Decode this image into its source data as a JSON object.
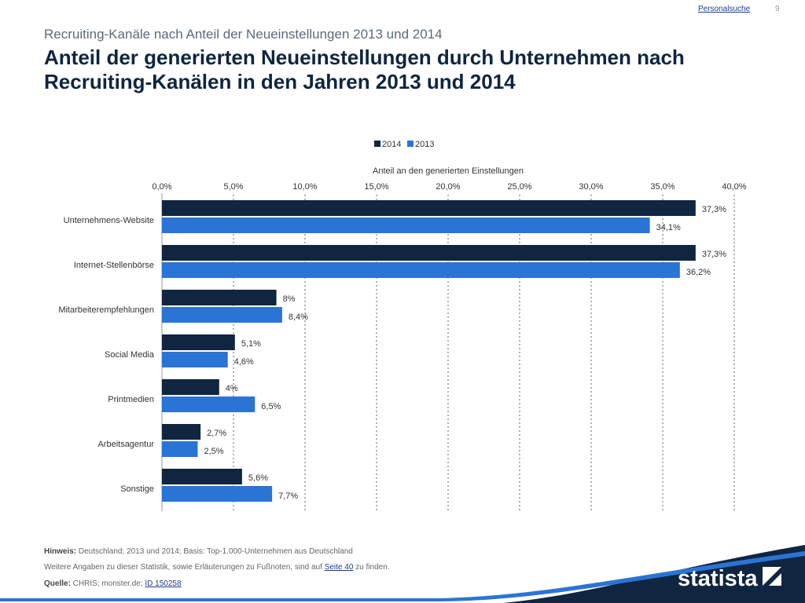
{
  "nav": {
    "link": "Personalsuche",
    "page": "9"
  },
  "header": {
    "subtitle": "Recruiting-Kanäle nach Anteil der Neueinstellungen 2013 und 2014",
    "title": "Anteil der generierten Neueinstellungen durch Unternehmen nach Recruiting-Kanälen in den Jahren 2013 und 2014"
  },
  "chart_data": {
    "type": "bar",
    "orientation": "horizontal",
    "categories": [
      "Unternehmens-Website",
      "Internet-Stellenbörse",
      "Mitarbeiterempfehlungen",
      "Social Media",
      "Printmedien",
      "Arbeitsagentur",
      "Sonstige"
    ],
    "series": [
      {
        "name": "2014",
        "values": [
          37.3,
          37.3,
          8,
          5.1,
          4,
          2.7,
          5.6
        ],
        "labels": [
          "37,3%",
          "37,3%",
          "8%",
          "5,1%",
          "4%",
          "2,7%",
          "5,6%"
        ],
        "color": "#0f2540"
      },
      {
        "name": "2013",
        "values": [
          34.1,
          36.2,
          8.4,
          4.6,
          6.5,
          2.5,
          7.7
        ],
        "labels": [
          "34,1%",
          "36,2%",
          "8,4%",
          "4,6%",
          "6,5%",
          "2,5%",
          "7,7%"
        ],
        "color": "#2a74d6"
      }
    ],
    "xlabel": "Anteil an den generierten Einstellungen",
    "xlim": [
      0,
      40
    ],
    "xticks": [
      "0,0%",
      "5,0%",
      "10,0%",
      "15,0%",
      "20,0%",
      "25,0%",
      "30,0%",
      "35,0%",
      "40,0%"
    ],
    "axis_position": "top",
    "grid": "dashed vertical",
    "legend_placement": "top"
  },
  "footer": {
    "hint_label": "Hinweis:",
    "hint_text": " Deutschland; 2013 und 2014; Basis: Top-1.000-Unternehmen aus Deutschland",
    "more_prefix": "Weitere Angaben zu dieser Statistik, sowie Erläuterungen zu Fußnoten, sind auf ",
    "more_link": "Seite 40",
    "more_suffix": " zu finden.",
    "source_label": "Quelle:",
    "source_text": " CHRIS; monster.de; ",
    "source_link": "ID 150258"
  },
  "brand": {
    "name": "statista",
    "color": "#0f2540",
    "accent": "#2a74d6"
  }
}
